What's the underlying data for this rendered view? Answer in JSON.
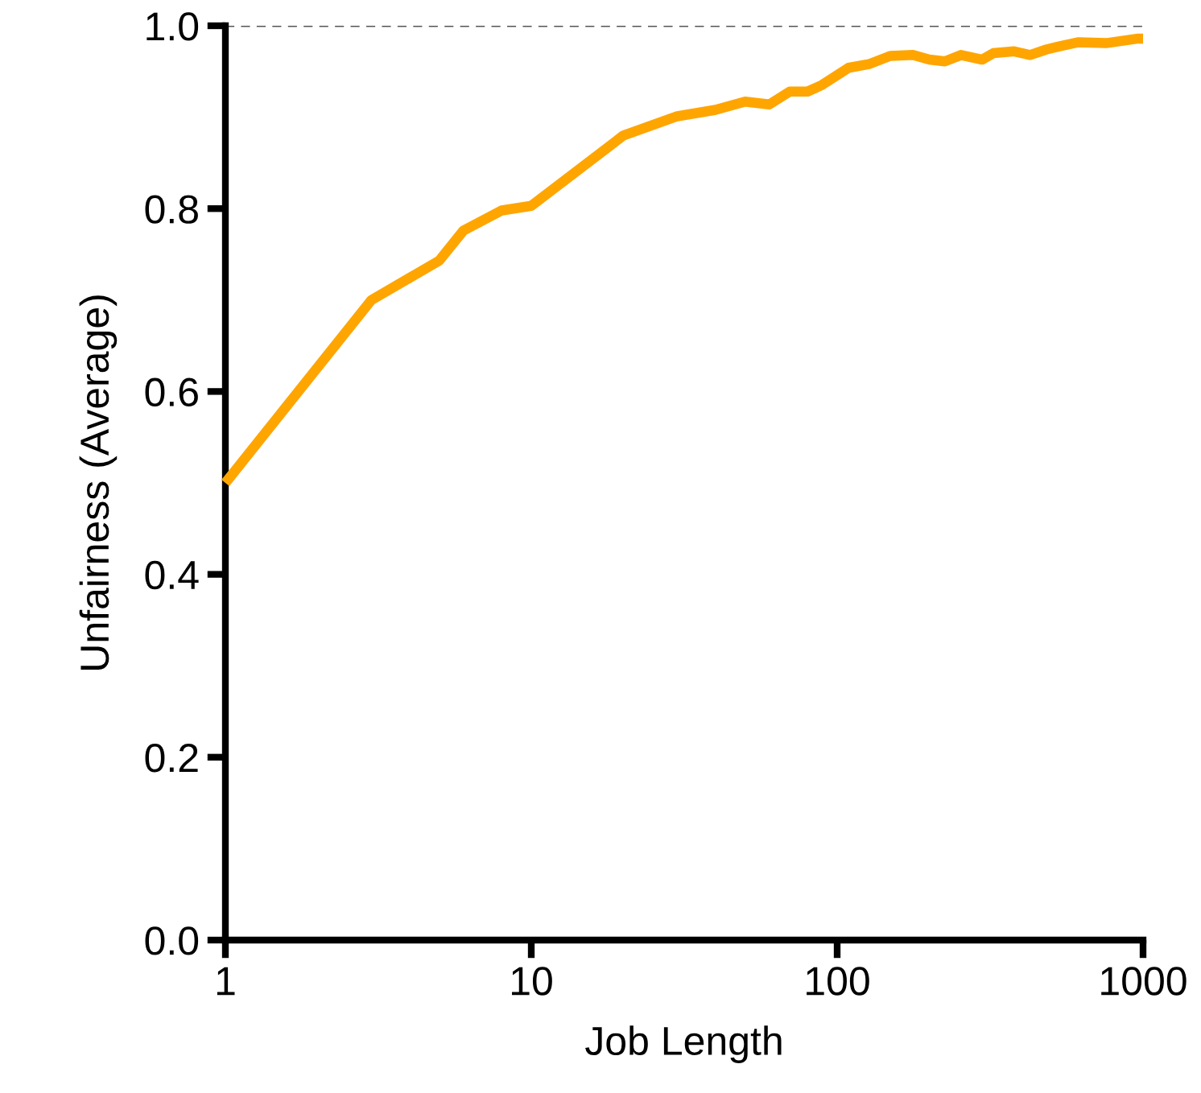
{
  "chart_data": {
    "type": "line",
    "xlabel": "Job Length",
    "ylabel": "Unfairness (Average)",
    "log": "x",
    "xlim": [
      1,
      1000
    ],
    "xticks": [
      1,
      10,
      100,
      1000
    ],
    "ylim": [
      0,
      1.0
    ],
    "yticks": [
      {
        "value": 0,
        "label": "0.0"
      },
      {
        "value": 0.2,
        "label": "0.2"
      },
      {
        "value": 0.4,
        "label": "0.4"
      },
      {
        "value": 0.6,
        "label": "0.6"
      },
      {
        "value": 0.8,
        "label": "0.8"
      },
      {
        "value": 1.0,
        "label": "1.0"
      }
    ],
    "grid": false,
    "legend": false,
    "ref_lines": [
      {
        "axis": "y",
        "value": 1.0,
        "color": "#555555",
        "line_style": "dashed"
      }
    ],
    "series": [
      {
        "color": "#ffa500",
        "x": [
          1,
          3,
          5,
          6,
          8,
          10,
          20,
          30,
          40,
          50,
          60,
          70,
          80,
          89,
          109,
          127,
          149,
          177,
          200,
          225,
          254,
          298,
          324,
          379,
          427,
          483,
          525,
          616,
          757,
          964,
          1000
        ],
        "values": [
          0.5,
          0.7,
          0.743,
          0.776,
          0.798,
          0.803,
          0.88,
          0.901,
          0.908,
          0.917,
          0.914,
          0.928,
          0.928,
          0.935,
          0.954,
          0.958,
          0.967,
          0.968,
          0.963,
          0.961,
          0.968,
          0.963,
          0.97,
          0.972,
          0.968,
          0.974,
          0.977,
          0.982,
          0.981,
          0.986,
          0.986
        ]
      }
    ]
  }
}
